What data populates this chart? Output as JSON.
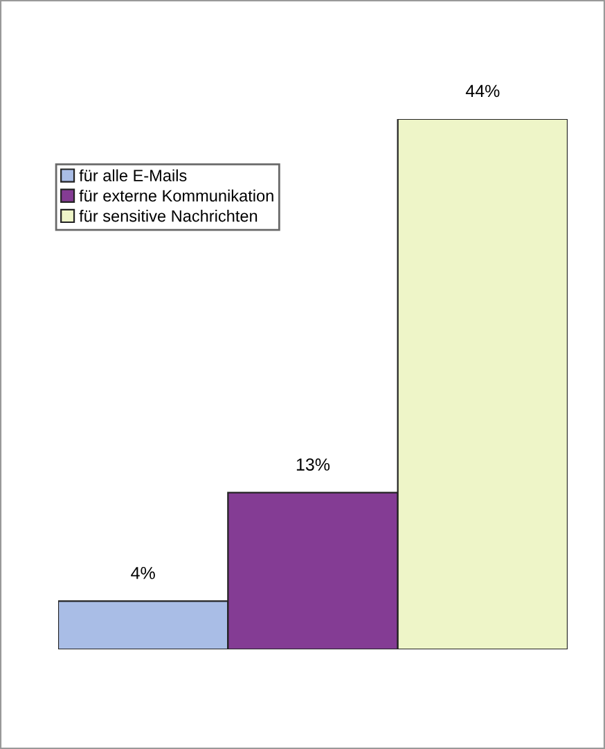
{
  "chart_data": {
    "type": "bar",
    "categories": [
      null
    ],
    "series": [
      {
        "name": "für alle E-Mails",
        "color": "#a9bde6",
        "values": [
          4
        ],
        "value_labels": [
          "4%"
        ]
      },
      {
        "name": "für externe Kommunikation",
        "color": "#843c94",
        "values": [
          13
        ],
        "value_labels": [
          "13%"
        ]
      },
      {
        "name": "für sensitive Nachrichten",
        "color": "#eef5c8",
        "values": [
          44
        ],
        "value_labels": [
          "44%"
        ]
      }
    ],
    "legend": "top left",
    "grid": false
  }
}
